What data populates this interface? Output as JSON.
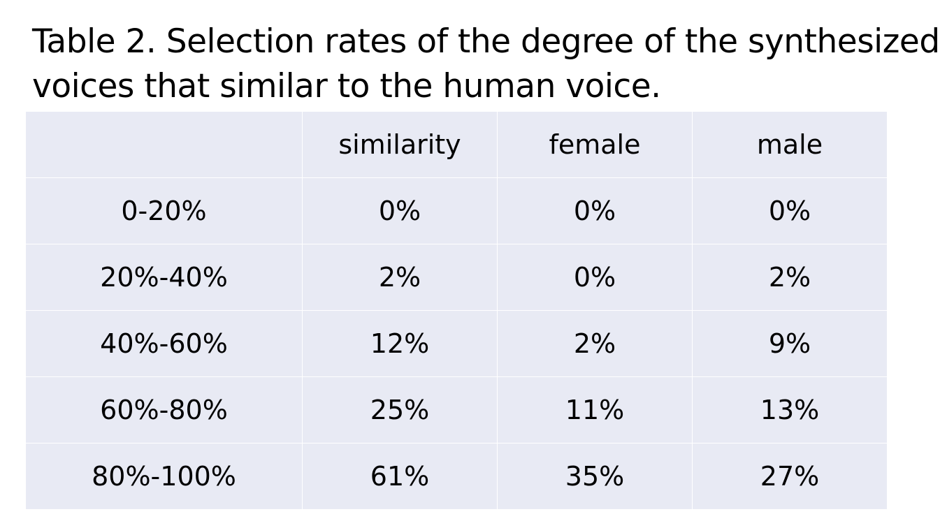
{
  "caption": {
    "line1": "Table 2. Selection rates of the degree of the synthesized",
    "line2": "voices that similar to the human voice."
  },
  "table": {
    "headers": [
      "",
      "similarity",
      "female",
      "male"
    ],
    "rows": [
      [
        "0-20%",
        "0%",
        "0%",
        "0%"
      ],
      [
        "20%-40%",
        "2%",
        "0%",
        "2%"
      ],
      [
        "40%-60%",
        "12%",
        "2%",
        "9%"
      ],
      [
        "60%-80%",
        "25%",
        "11%",
        "13%"
      ],
      [
        "80%-100%",
        "61%",
        "35%",
        "27%"
      ]
    ]
  },
  "colors": {
    "cell_background": "#e8eaf4",
    "grid_lines": "#ffffff",
    "text": "#000000"
  }
}
